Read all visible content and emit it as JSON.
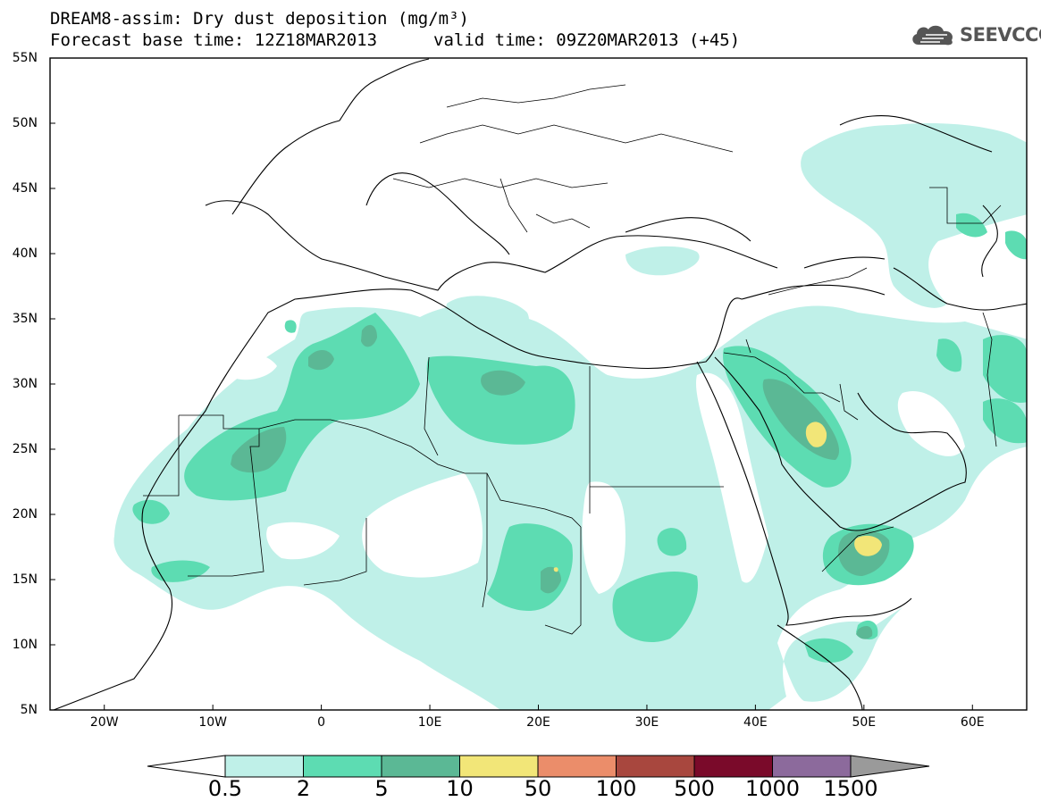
{
  "title": {
    "line1": "DREAM8-assim: Dry dust deposition (mg/m³)",
    "line2": "Forecast base time: 12Z18MAR2013",
    "valid": "valid time: 09Z20MAR2013 (+45)"
  },
  "logo": {
    "text": "SEEVCCC",
    "icon": "cloud-icon"
  },
  "map": {
    "projection": "lat-lon",
    "lon_range": [
      -25,
      65
    ],
    "lat_range": [
      5,
      55
    ],
    "lat_labels": [
      "55N",
      "50N",
      "45N",
      "40N",
      "35N",
      "30N",
      "25N",
      "20N",
      "15N",
      "10N",
      "5N"
    ],
    "lon_labels": [
      "20W",
      "10W",
      "0",
      "10E",
      "20E",
      "30E",
      "40E",
      "50E",
      "60E"
    ]
  },
  "colorbar": {
    "labels": [
      "0.5",
      "2",
      "5",
      "10",
      "50",
      "100",
      "500",
      "1000",
      "1500"
    ],
    "colors": [
      "#bff0e8",
      "#5ddcb2",
      "#5bb895",
      "#f2e678",
      "#eb8d6a",
      "#a8473e",
      "#7a0a2a",
      "#8c6a9c",
      "#9a9a9a"
    ]
  }
}
